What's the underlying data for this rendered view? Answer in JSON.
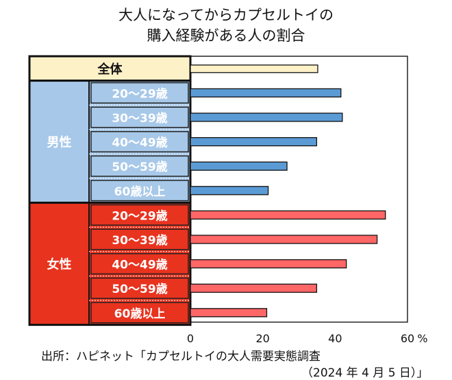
{
  "chart_data": {
    "type": "bar",
    "orientation": "horizontal",
    "title_line1": "大人になってからカプセルトイの",
    "title_line2": "購入経験がある人の割合",
    "overall": {
      "label": "全体",
      "value": 35.2,
      "color": "#fdf1c8"
    },
    "groups": [
      {
        "name": "男性",
        "color": "#a7c8e8",
        "bar_color": "#5b9bd5",
        "categories": [
          "20～29歳",
          "30～39歳",
          "40～49歳",
          "50～59歳",
          "60歳以上"
        ],
        "values": [
          41.6,
          42.0,
          34.9,
          26.7,
          21.5
        ]
      },
      {
        "name": "女性",
        "color": "#e8331f",
        "bar_color": "#ff6666",
        "categories": [
          "20～29歳",
          "30～39歳",
          "40～49歳",
          "50～59歳",
          "60歳以上"
        ],
        "values": [
          53.9,
          51.6,
          43.1,
          34.9,
          21.1
        ]
      }
    ],
    "xlim": [
      0,
      60
    ],
    "xticks": [
      "0",
      "20",
      "40",
      "60"
    ],
    "xunit": "%",
    "grid": false
  },
  "source_line1": "出所：ハピネット「カプセルトイの大人需要実態調査",
  "source_line2": "（2024 年 4 月 5 日）」"
}
